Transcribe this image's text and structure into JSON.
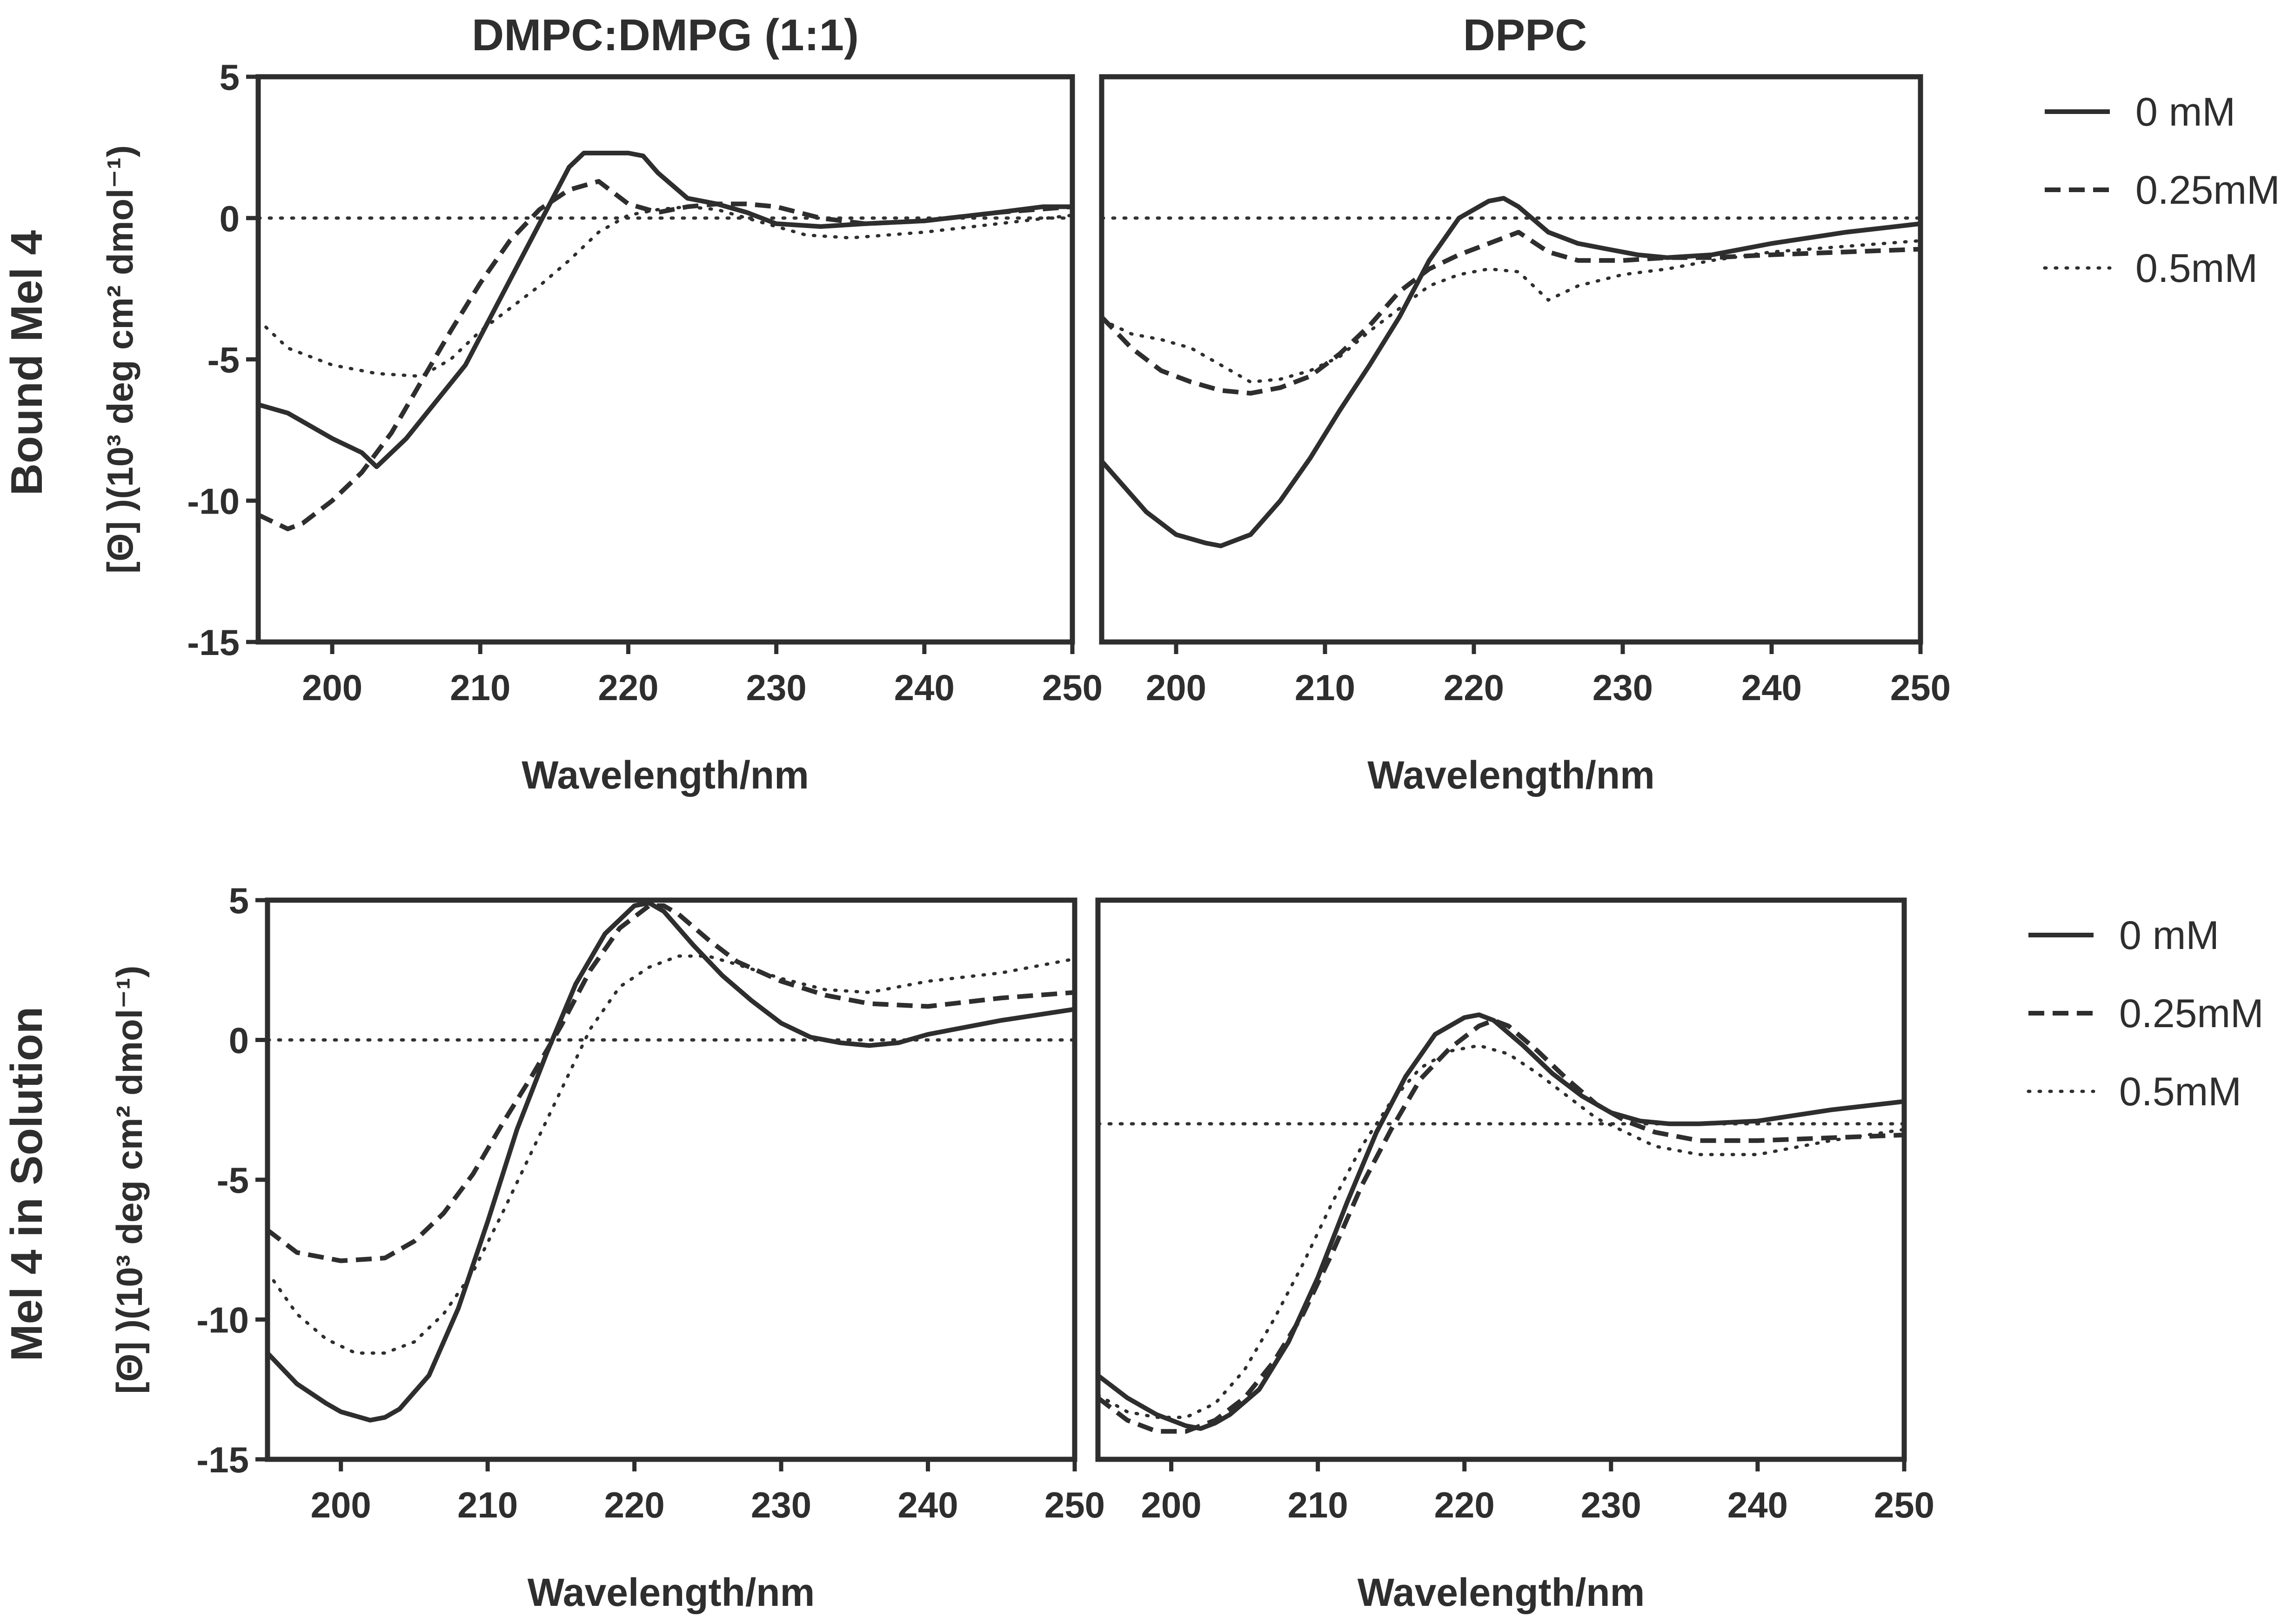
{
  "columns": [
    "DMPC:DMPG (1:1)",
    "DPPC"
  ],
  "rows": [
    "Bound Mel 4",
    "Mel 4 in Solution"
  ],
  "colors": {
    "ink": "#2e2e2e",
    "background": "#ffffff"
  },
  "legend": [
    {
      "label": "0 mM",
      "style": "solid"
    },
    {
      "label": "0.25mM",
      "style": "dashed"
    },
    {
      "label": "0.5mM",
      "style": "dotted"
    }
  ],
  "chart_data": [
    {
      "type": "line",
      "title": "DMPC:DMPG (1:1)",
      "row_label": "Bound Mel 4",
      "xlabel": "Wavelength/nm",
      "ylabel": "[Θ] )(10³ deg cm² dmol⁻¹)",
      "xlim": [
        195,
        250
      ],
      "ylim": [
        -15,
        5
      ],
      "xticks": [
        200,
        210,
        220,
        230,
        240,
        250
      ],
      "yticks": [
        5,
        0,
        -5,
        -10,
        -15
      ],
      "reference_line": 0,
      "series": [
        {
          "name": "0 mM",
          "style": "solid",
          "x": [
            195,
            197,
            198,
            200,
            202,
            203,
            205,
            207,
            209,
            211,
            213,
            215,
            216,
            217,
            219,
            220,
            221,
            222,
            224,
            226,
            228,
            230,
            233,
            236,
            240,
            245,
            248,
            250
          ],
          "y": [
            -6.6,
            -6.9,
            -7.2,
            -7.8,
            -8.3,
            -8.8,
            -7.8,
            -6.5,
            -5.2,
            -3.2,
            -1.2,
            0.8,
            1.8,
            2.3,
            2.3,
            2.3,
            2.2,
            1.6,
            0.7,
            0.5,
            0.2,
            -0.2,
            -0.3,
            -0.2,
            -0.1,
            0.2,
            0.4,
            0.4
          ]
        },
        {
          "name": "0.25mM",
          "style": "dashed",
          "x": [
            195,
            197,
            198,
            200,
            202,
            204,
            206,
            208,
            210,
            212,
            214,
            216,
            218,
            220,
            222,
            224,
            226,
            228,
            230,
            233,
            236,
            240,
            245,
            250
          ],
          "y": [
            -10.5,
            -11.0,
            -10.8,
            -10.0,
            -9.0,
            -7.6,
            -5.8,
            -4.0,
            -2.3,
            -0.8,
            0.3,
            1.0,
            1.3,
            0.5,
            0.2,
            0.4,
            0.5,
            0.5,
            0.4,
            0.0,
            -0.2,
            -0.1,
            0.2,
            0.4
          ]
        },
        {
          "name": "0.5mM",
          "style": "dotted",
          "x": [
            195,
            197,
            200,
            203,
            206,
            208,
            210,
            212,
            214,
            216,
            218,
            220,
            222,
            224,
            226,
            228,
            230,
            232,
            235,
            240,
            245,
            250
          ],
          "y": [
            -3.6,
            -4.6,
            -5.2,
            -5.5,
            -5.6,
            -5.0,
            -4.0,
            -3.2,
            -2.4,
            -1.5,
            -0.5,
            0.1,
            0.3,
            0.4,
            0.3,
            0.0,
            -0.3,
            -0.6,
            -0.7,
            -0.5,
            -0.2,
            0.1
          ]
        }
      ]
    },
    {
      "type": "line",
      "title": "DPPC",
      "row_label": "Bound Mel 4",
      "xlabel": "Wavelength/nm",
      "ylabel": "",
      "xlim": [
        195,
        250
      ],
      "ylim": [
        -15,
        5
      ],
      "xticks": [
        200,
        210,
        220,
        230,
        240,
        250
      ],
      "yticks": [],
      "reference_line": 0,
      "series": [
        {
          "name": "0 mM",
          "style": "solid",
          "x": [
            195,
            196,
            198,
            200,
            202,
            203,
            204,
            205,
            207,
            209,
            211,
            213,
            215,
            217,
            219,
            221,
            222,
            223,
            225,
            227,
            229,
            231,
            233,
            236,
            240,
            245,
            250
          ],
          "y": [
            -8.6,
            -9.2,
            -10.4,
            -11.2,
            -11.5,
            -11.6,
            -11.4,
            -11.2,
            -10.0,
            -8.5,
            -6.8,
            -5.2,
            -3.5,
            -1.5,
            0.0,
            0.6,
            0.7,
            0.4,
            -0.5,
            -0.9,
            -1.1,
            -1.3,
            -1.4,
            -1.3,
            -0.9,
            -0.5,
            -0.2
          ]
        },
        {
          "name": "0.25mM",
          "style": "dashed",
          "x": [
            195,
            197,
            199,
            201,
            203,
            205,
            207,
            209,
            211,
            213,
            215,
            217,
            219,
            221,
            223,
            225,
            227,
            230,
            233,
            236,
            240,
            245,
            250
          ],
          "y": [
            -3.5,
            -4.6,
            -5.4,
            -5.8,
            -6.1,
            -6.2,
            -6.0,
            -5.6,
            -4.8,
            -3.8,
            -2.6,
            -1.8,
            -1.3,
            -0.9,
            -0.5,
            -1.2,
            -1.5,
            -1.5,
            -1.4,
            -1.4,
            -1.3,
            -1.2,
            -1.1
          ]
        },
        {
          "name": "0.5mM",
          "style": "dotted",
          "x": [
            195,
            197,
            199,
            201,
            203,
            205,
            207,
            209,
            211,
            213,
            215,
            217,
            219,
            221,
            223,
            225,
            227,
            230,
            233,
            236,
            240,
            245,
            250
          ],
          "y": [
            -3.6,
            -4.1,
            -4.3,
            -4.6,
            -5.2,
            -5.8,
            -5.7,
            -5.4,
            -4.9,
            -4.0,
            -3.2,
            -2.4,
            -2.0,
            -1.8,
            -1.9,
            -2.9,
            -2.4,
            -2.0,
            -1.8,
            -1.5,
            -1.2,
            -1.0,
            -0.8
          ]
        }
      ]
    },
    {
      "type": "line",
      "title": "",
      "row_label": "Mel 4 in Solution",
      "xlabel": "Wavelength/nm",
      "ylabel": "[Θ] )(10³ deg cm² dmol⁻¹)",
      "xlim": [
        195,
        250
      ],
      "ylim": [
        -15,
        5
      ],
      "xticks": [
        200,
        210,
        220,
        230,
        240,
        250
      ],
      "yticks": [
        5,
        0,
        -5,
        -10,
        -15
      ],
      "reference_line": 0,
      "series": [
        {
          "name": "0 mM",
          "style": "solid",
          "x": [
            195,
            197,
            199,
            200,
            202,
            203,
            204,
            206,
            208,
            210,
            212,
            214,
            216,
            218,
            220,
            221,
            222,
            224,
            226,
            228,
            230,
            232,
            234,
            236,
            238,
            240,
            245,
            250
          ],
          "y": [
            -11.2,
            -12.3,
            -13.0,
            -13.3,
            -13.6,
            -13.5,
            -13.2,
            -12.0,
            -9.6,
            -6.5,
            -3.2,
            -0.5,
            2.0,
            3.8,
            4.8,
            4.9,
            4.6,
            3.4,
            2.3,
            1.4,
            0.6,
            0.1,
            -0.1,
            -0.2,
            -0.1,
            0.2,
            0.7,
            1.1
          ]
        },
        {
          "name": "0.25mM",
          "style": "dashed",
          "x": [
            195,
            197,
            200,
            203,
            205,
            207,
            209,
            211,
            213,
            215,
            217,
            219,
            221,
            222,
            223,
            225,
            227,
            230,
            233,
            236,
            240,
            245,
            250
          ],
          "y": [
            -6.8,
            -7.6,
            -7.9,
            -7.8,
            -7.2,
            -6.2,
            -4.8,
            -3.0,
            -1.3,
            0.5,
            2.5,
            4.0,
            4.8,
            4.8,
            4.5,
            3.6,
            2.8,
            2.1,
            1.6,
            1.3,
            1.2,
            1.5,
            1.7
          ]
        },
        {
          "name": "0.5mM",
          "style": "dotted",
          "x": [
            195,
            197,
            199,
            201,
            203,
            205,
            207,
            209,
            211,
            213,
            215,
            217,
            219,
            221,
            223,
            225,
            227,
            230,
            233,
            236,
            240,
            245,
            250
          ],
          "y": [
            -8.3,
            -9.8,
            -10.7,
            -11.2,
            -11.2,
            -10.8,
            -9.8,
            -8.3,
            -6.2,
            -4.0,
            -1.8,
            0.4,
            1.9,
            2.6,
            3.0,
            3.0,
            2.7,
            2.2,
            1.8,
            1.7,
            2.1,
            2.4,
            2.9
          ]
        }
      ]
    },
    {
      "type": "line",
      "title": "",
      "row_label": "Mel 4 in Solution",
      "xlabel": "Wavelength/nm",
      "ylabel": "",
      "xlim": [
        195,
        250
      ],
      "ylim": [
        -15,
        5
      ],
      "xticks": [
        200,
        210,
        220,
        230,
        240,
        250
      ],
      "yticks": [],
      "reference_line": -3,
      "series": [
        {
          "name": "0 mM",
          "style": "solid",
          "x": [
            195,
            197,
            199,
            201,
            202,
            203,
            204,
            206,
            208,
            210,
            212,
            214,
            216,
            218,
            220,
            221,
            222,
            224,
            226,
            228,
            230,
            232,
            234,
            236,
            240,
            245,
            250
          ],
          "y": [
            -12.0,
            -12.8,
            -13.4,
            -13.8,
            -13.9,
            -13.7,
            -13.4,
            -12.5,
            -10.8,
            -8.5,
            -5.8,
            -3.3,
            -1.3,
            0.2,
            0.8,
            0.9,
            0.7,
            -0.2,
            -1.2,
            -2.0,
            -2.6,
            -2.9,
            -3.0,
            -3.0,
            -2.9,
            -2.5,
            -2.2
          ]
        },
        {
          "name": "0.25mM",
          "style": "dashed",
          "x": [
            195,
            197,
            199,
            201,
            203,
            205,
            207,
            209,
            211,
            213,
            215,
            217,
            219,
            221,
            222,
            223,
            225,
            227,
            229,
            231,
            233,
            236,
            240,
            245,
            250
          ],
          "y": [
            -12.8,
            -13.6,
            -14.0,
            -14.0,
            -13.6,
            -12.8,
            -11.5,
            -9.8,
            -7.6,
            -5.2,
            -3.2,
            -1.4,
            -0.3,
            0.5,
            0.7,
            0.5,
            -0.4,
            -1.4,
            -2.3,
            -2.9,
            -3.3,
            -3.6,
            -3.6,
            -3.5,
            -3.4
          ]
        },
        {
          "name": "0.5mM",
          "style": "dotted",
          "x": [
            195,
            197,
            199,
            201,
            203,
            205,
            207,
            209,
            211,
            213,
            215,
            217,
            219,
            221,
            223,
            225,
            227,
            229,
            231,
            233,
            236,
            240,
            245,
            250
          ],
          "y": [
            -12.7,
            -13.3,
            -13.5,
            -13.5,
            -13.0,
            -11.8,
            -10.0,
            -8.0,
            -5.8,
            -3.8,
            -2.2,
            -1.0,
            -0.4,
            -0.2,
            -0.5,
            -1.2,
            -2.0,
            -2.8,
            -3.3,
            -3.8,
            -4.1,
            -4.1,
            -3.6,
            -3.2
          ]
        }
      ]
    }
  ]
}
